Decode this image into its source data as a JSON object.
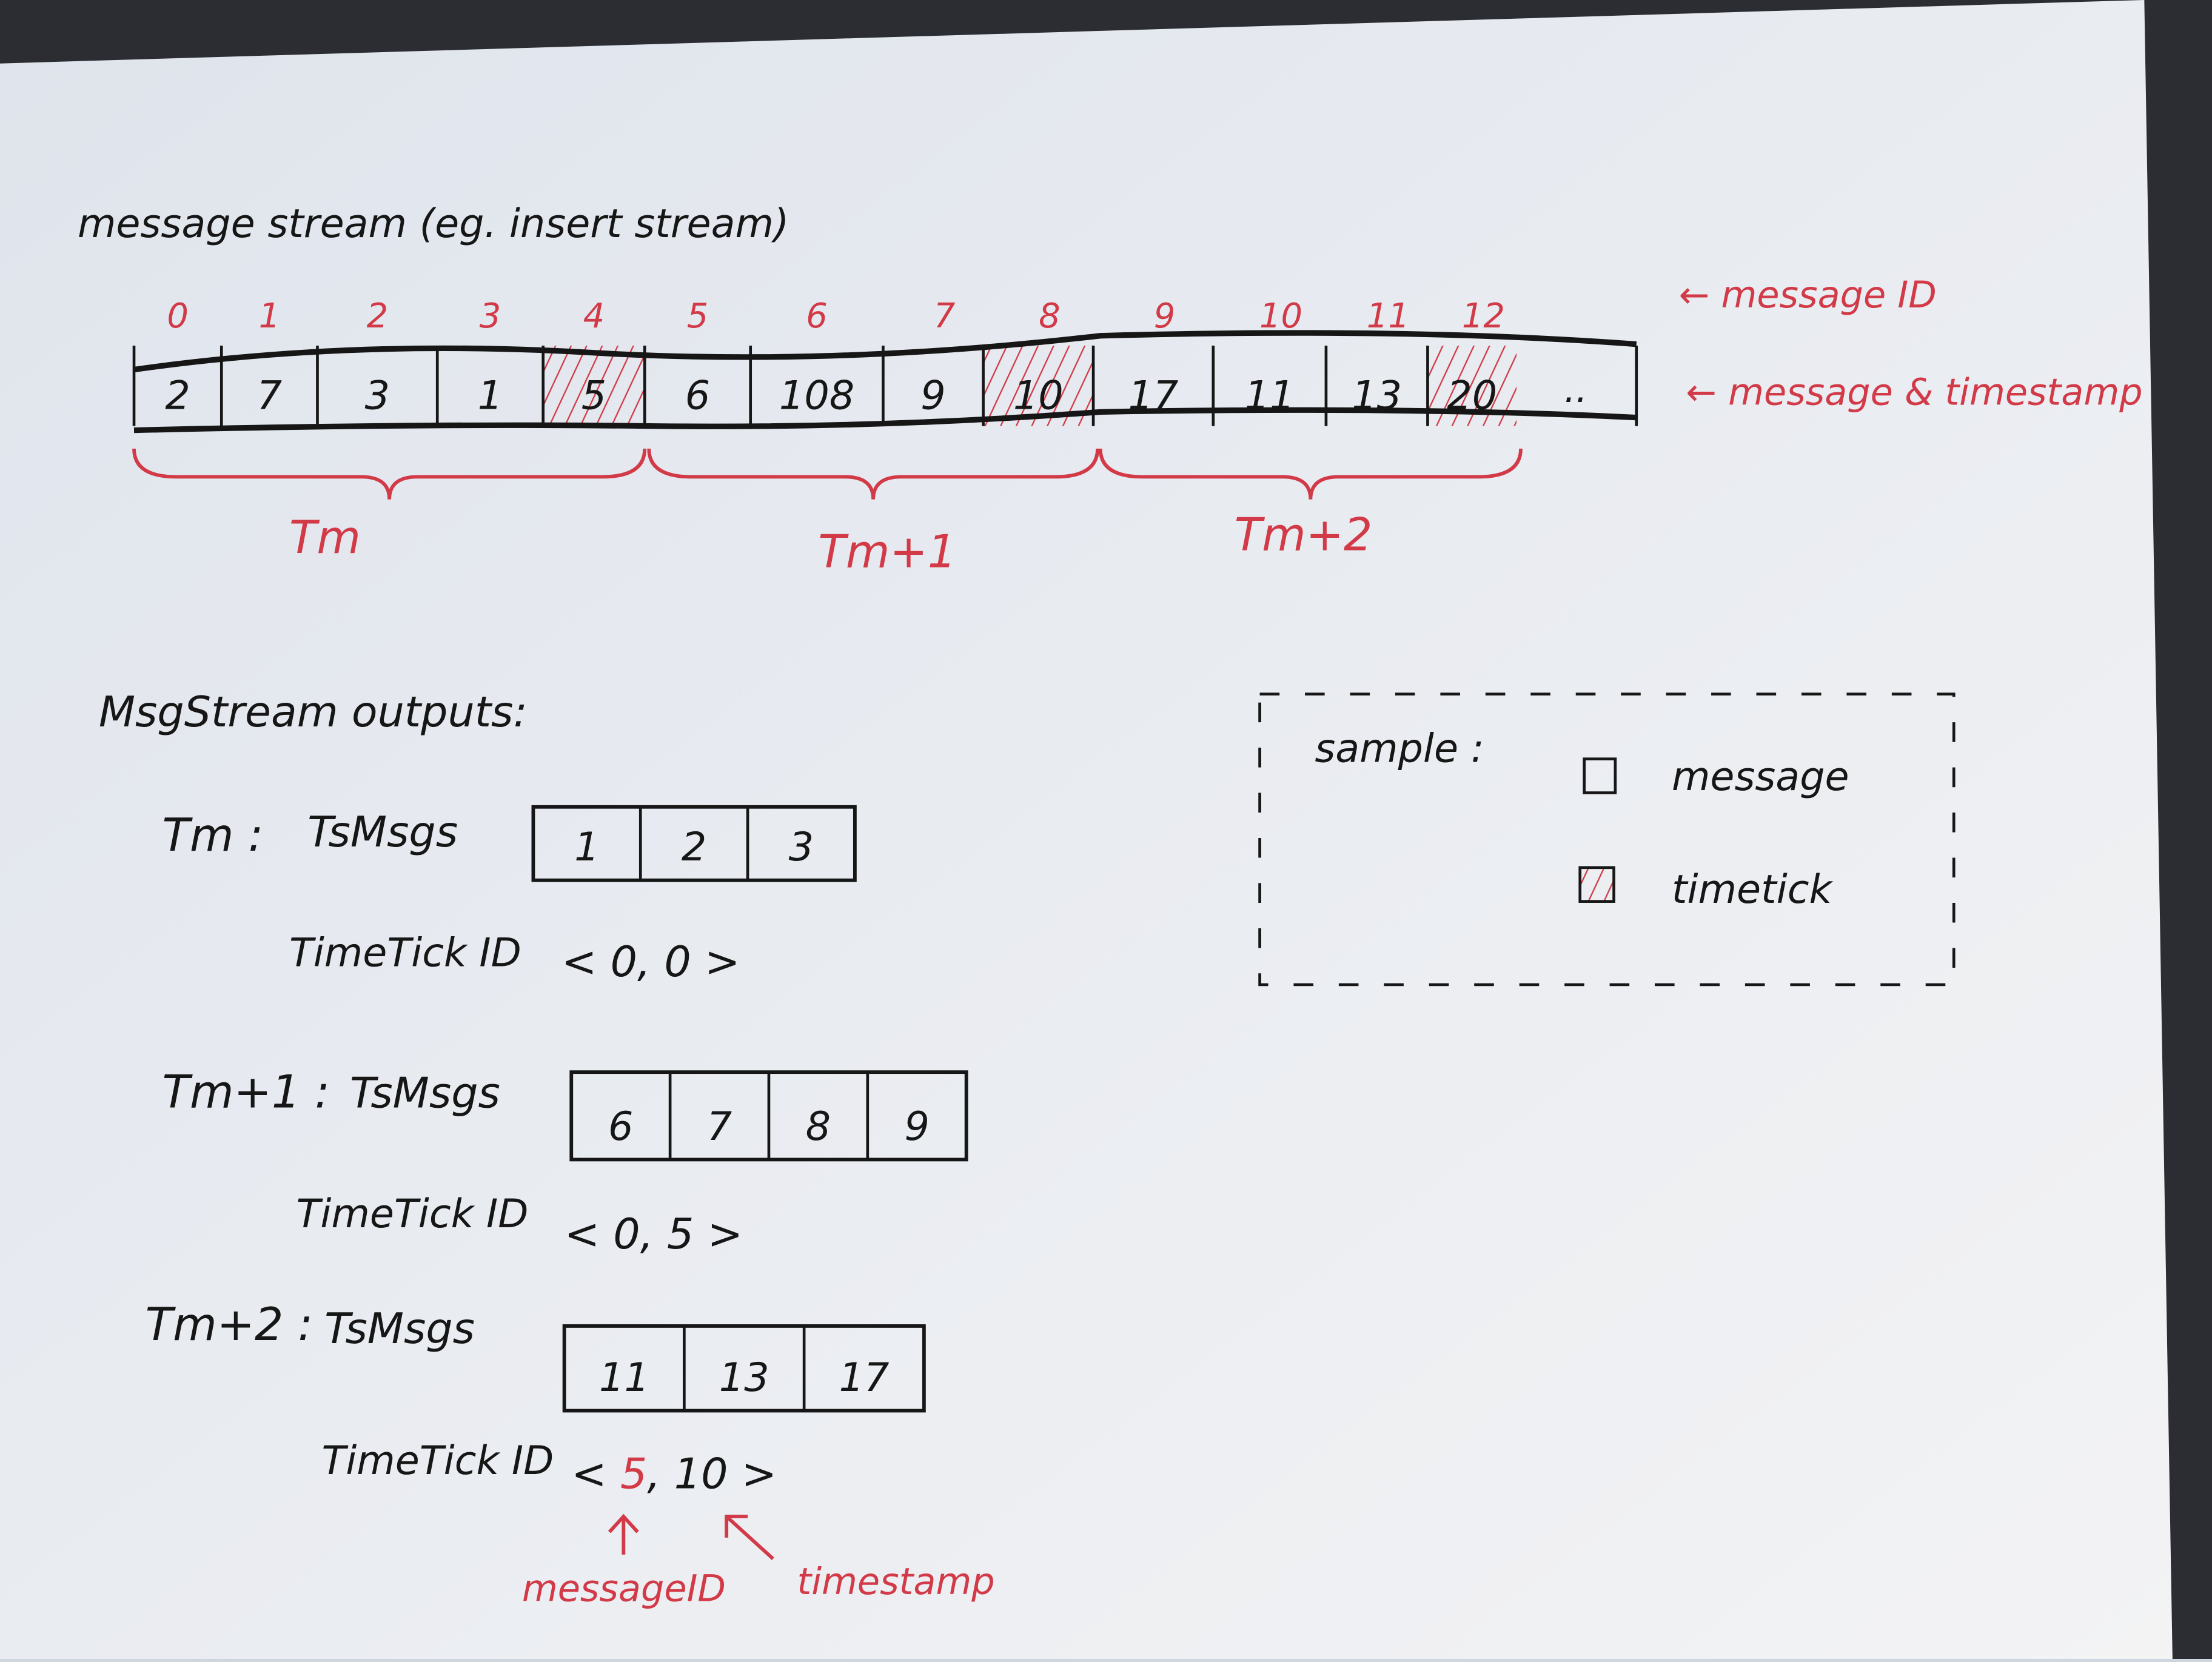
{
  "title": "message stream (eg. insert stream)",
  "colors": {
    "ink": "#161616",
    "red_ink": "#d23a48",
    "paper": "#e6eaf0"
  },
  "stream": {
    "message_ids": [
      "0",
      "1",
      "2",
      "3",
      "4",
      "5",
      "6",
      "7",
      "8",
      "9",
      "10",
      "11",
      "12"
    ],
    "cells": [
      {
        "value": "2",
        "timetick": false
      },
      {
        "value": "7",
        "timetick": false
      },
      {
        "value": "3",
        "timetick": false
      },
      {
        "value": "1",
        "timetick": false
      },
      {
        "value": "5",
        "timetick": true
      },
      {
        "value": "6",
        "timetick": false
      },
      {
        "value": "108",
        "timetick": false
      },
      {
        "value": "9",
        "timetick": false
      },
      {
        "value": "10",
        "timetick": true
      },
      {
        "value": "17",
        "timetick": false
      },
      {
        "value": "11",
        "timetick": false
      },
      {
        "value": "13",
        "timetick": false
      },
      {
        "value": "20",
        "timetick": true
      }
    ],
    "ellipsis": "..",
    "id_annotation": "← message ID",
    "ts_annotation": "← message & timestamp",
    "groups": [
      "Tm",
      "Tm+1",
      "Tm+2"
    ]
  },
  "outputs": {
    "heading": "MsgStream outputs:",
    "ts_label": "TsMsgs",
    "tt_label": "TimeTick ID",
    "items": [
      {
        "name": "Tm :",
        "msgs": [
          "1",
          "2",
          "3"
        ],
        "tick_id": "0",
        "tick_ts": "0"
      },
      {
        "name": "Tm+1 :",
        "msgs": [
          "6",
          "7",
          "8",
          "9"
        ],
        "tick_id": "0",
        "tick_ts": "5"
      },
      {
        "name": "Tm+2 :",
        "msgs": [
          "11",
          "13",
          "17"
        ],
        "tick_id": "5",
        "tick_ts": "10"
      }
    ],
    "arrow_id_label": "messageID",
    "arrow_ts_label": "timestamp"
  },
  "legend": {
    "title": "sample :",
    "message_label": "message",
    "timetick_label": "timetick"
  }
}
